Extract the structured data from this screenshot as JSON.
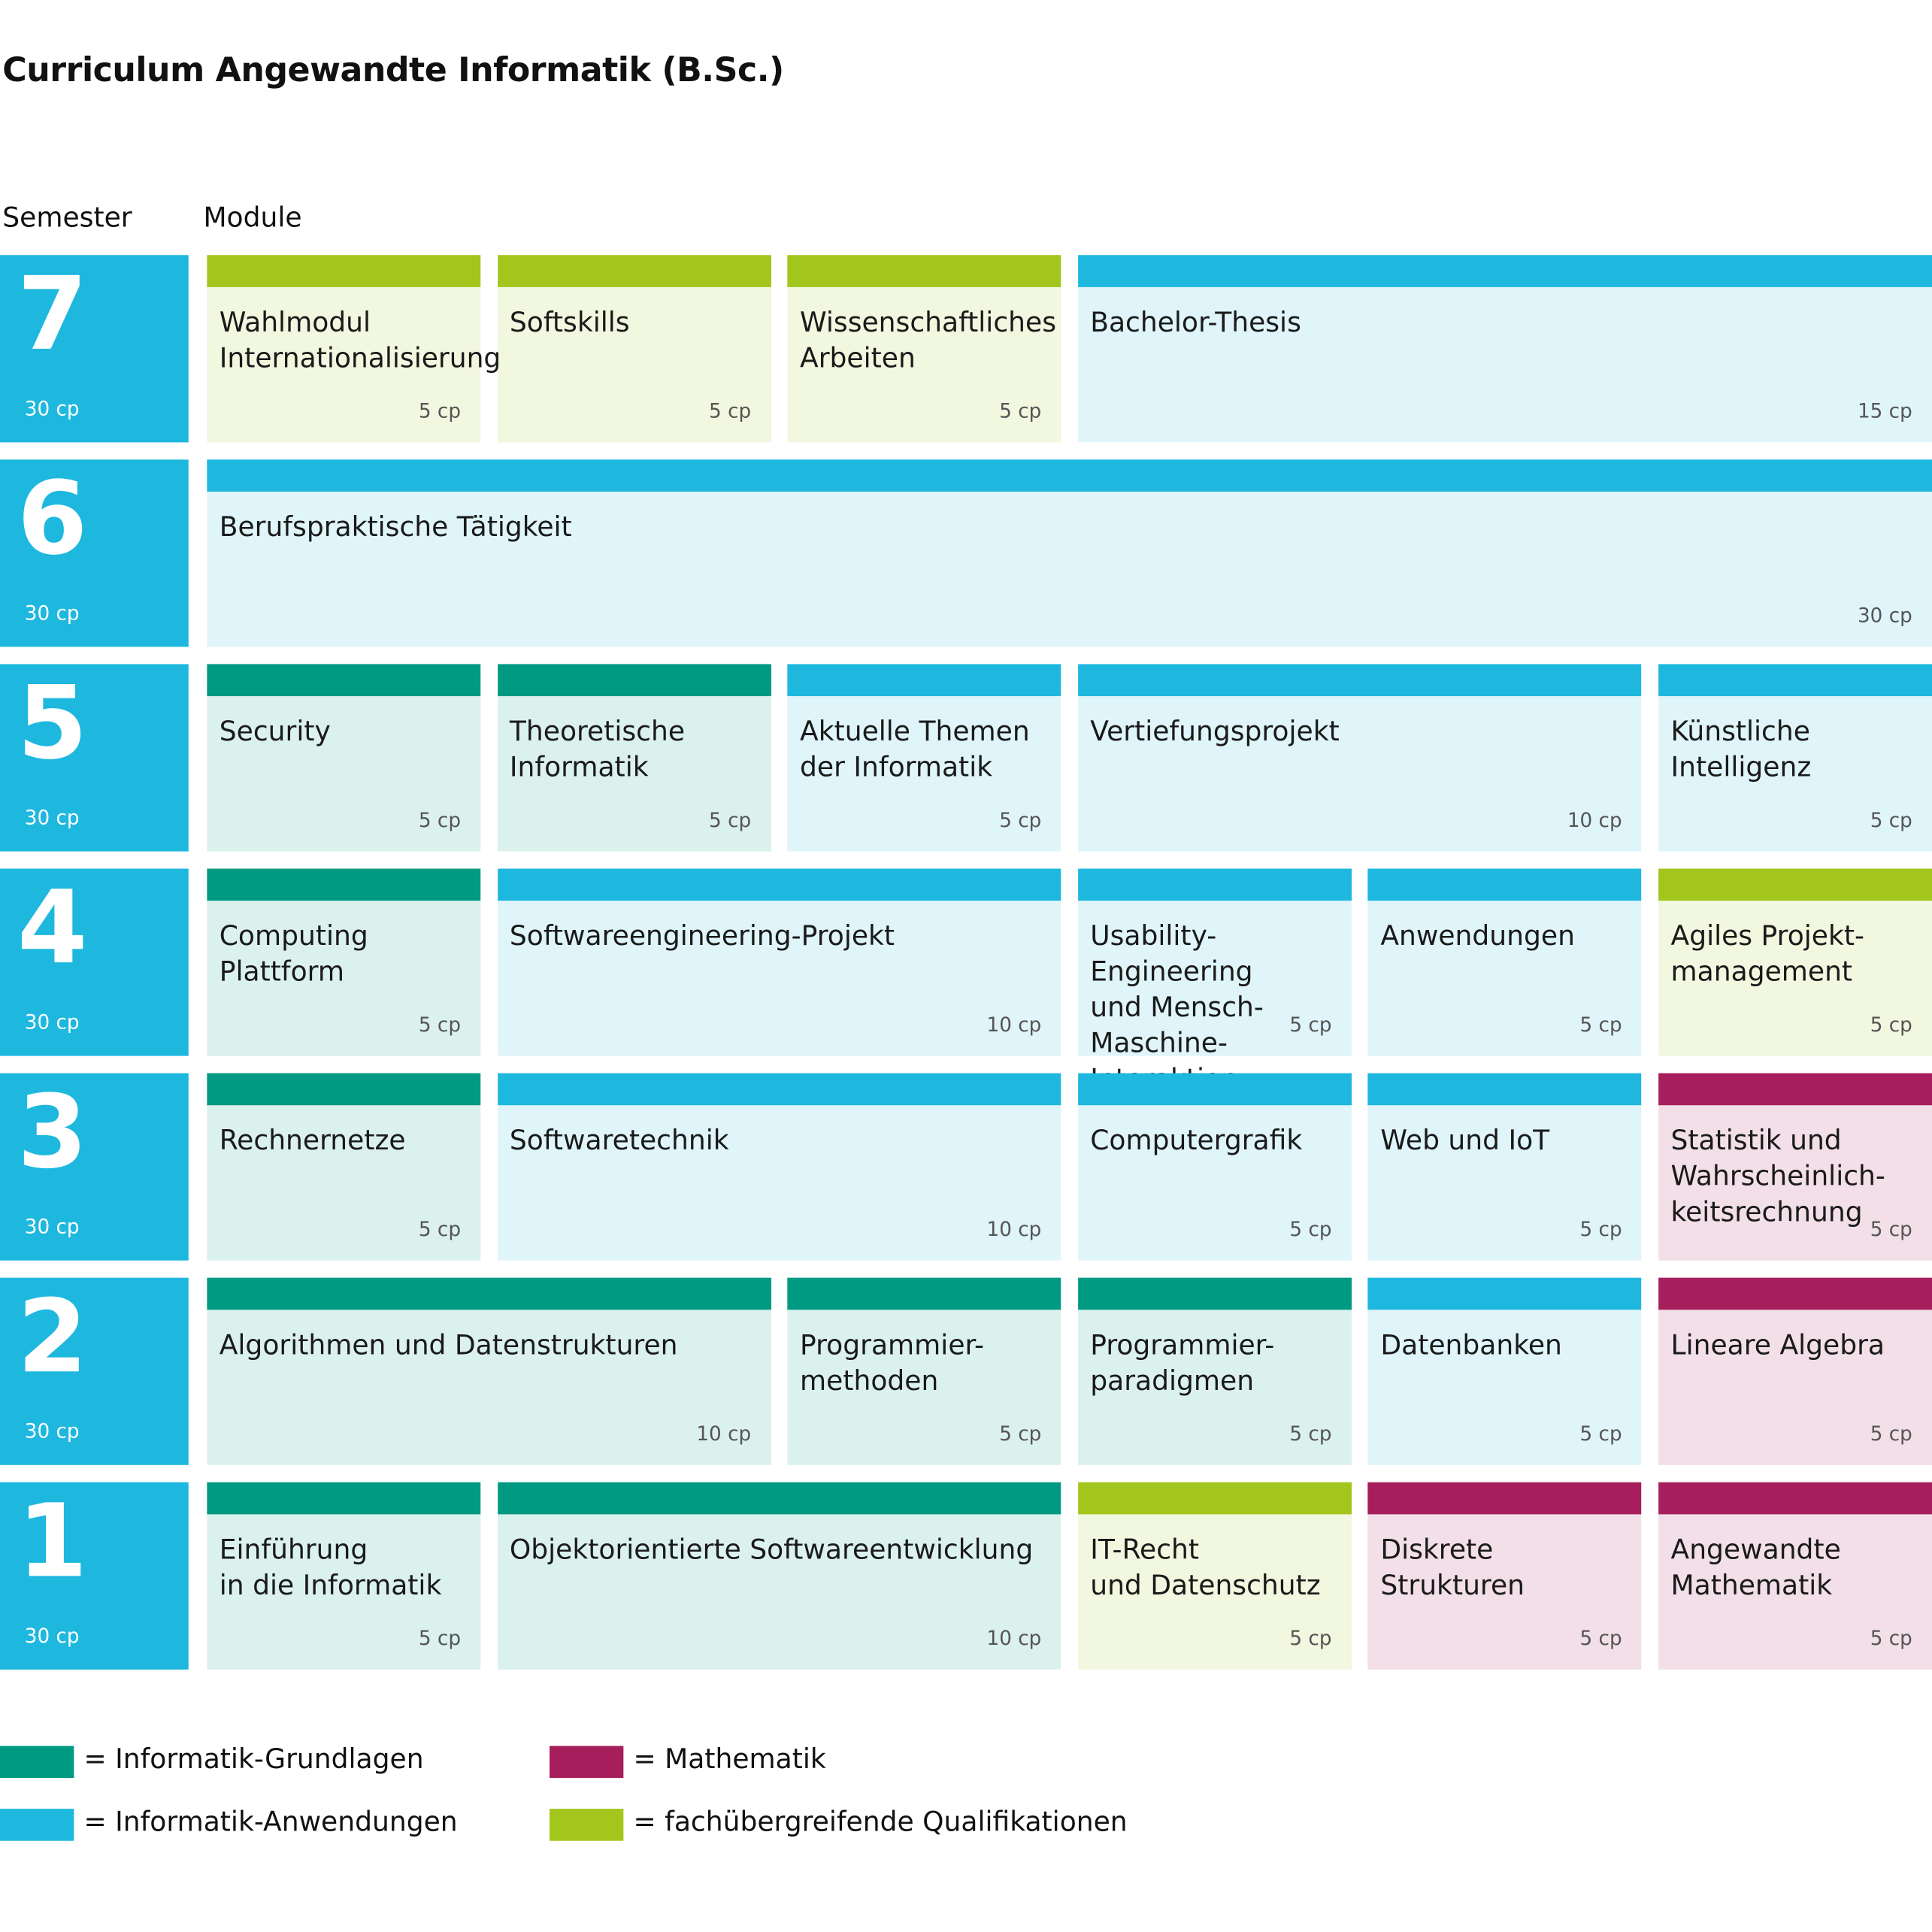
{
  "header": {
    "title": "Curriculum Angewandte Informatik (B.Sc.)",
    "semester_label": "Semester",
    "module_label": "Module"
  },
  "semesters": [
    {
      "number": 7,
      "cp": "30 cp",
      "modules": [
        {
          "name": "Wahlmodul\nInternationalisierung",
          "cp": "5 cp",
          "color": "#a2c61c"
        },
        {
          "name": "Softskills",
          "cp": "5 cp",
          "color": "#a2c61c"
        },
        {
          "name": "Wissenschaftliches\nArbeiten",
          "cp": "5 cp",
          "color": "#a2c61c"
        },
        {
          "name": "Bachelor-Thesis",
          "cp": "15 cp",
          "color": "#1eb8df"
        }
      ]
    },
    {
      "number": 6,
      "cp": "30 cp",
      "modules": [
        {
          "name": "Berufspraktische Tätigkeit",
          "cp": "30 cp",
          "color": "#1eb8df"
        }
      ]
    },
    {
      "number": 5,
      "cp": "30 cp",
      "modules": [
        {
          "name": "Security",
          "cp": "5 cp",
          "color": "#009982"
        },
        {
          "name": "Theoretische\nInformatik",
          "cp": "5 cp",
          "color": "#009982"
        },
        {
          "name": "Aktuelle Themen\nder Informatik",
          "cp": "5 cp",
          "color": "#1eb8df"
        },
        {
          "name": "Vertiefungsprojekt",
          "cp": "10 cp",
          "color": "#1eb8df"
        },
        {
          "name": "Künstliche\nIntelligenz",
          "cp": "5 cp",
          "color": "#1eb8df"
        }
      ]
    },
    {
      "number": 4,
      "cp": "30 cp",
      "modules": [
        {
          "name": "Computing\nPlattform",
          "cp": "5 cp",
          "color": "#009982"
        },
        {
          "name": "Softwareengineering-Projekt",
          "cp": "10 cp",
          "color": "#1eb8df"
        },
        {
          "name": "Usability-Engineering\nund Mensch-\nMaschine-Interaktion",
          "cp": "5 cp",
          "color": "#1eb8df"
        },
        {
          "name": "Anwendungen",
          "cp": "5 cp",
          "color": "#1eb8df"
        },
        {
          "name": "Agiles Projekt-\nmanagement",
          "cp": "5 cp",
          "color": "#a2c61c"
        }
      ]
    },
    {
      "number": 3,
      "cp": "30 cp",
      "modules": [
        {
          "name": "Rechnernetze",
          "cp": "5 cp",
          "color": "#009982"
        },
        {
          "name": "Softwaretechnik",
          "cp": "10 cp",
          "color": "#1eb8df"
        },
        {
          "name": "Computergrafik",
          "cp": "5 cp",
          "color": "#1eb8df"
        },
        {
          "name": "Web und IoT",
          "cp": "5 cp",
          "color": "#1eb8df"
        },
        {
          "name": "Statistik und\nWahrscheinlich-\nkeitsrechnung",
          "cp": "5 cp",
          "color": "#a61f5c"
        }
      ]
    },
    {
      "number": 2,
      "cp": "30 cp",
      "modules": [
        {
          "name": "Algorithmen und Datenstrukturen",
          "cp": "10 cp",
          "color": "#009982"
        },
        {
          "name": "Programmier-\nmethoden",
          "cp": "5 cp",
          "color": "#009982"
        },
        {
          "name": "Programmier-\nparadigmen",
          "cp": "5 cp",
          "color": "#009982"
        },
        {
          "name": "Datenbanken",
          "cp": "5 cp",
          "color": "#1eb8df"
        },
        {
          "name": "Lineare Algebra",
          "cp": "5 cp",
          "color": "#a61f5c"
        }
      ]
    },
    {
      "number": 1,
      "cp": "30 cp",
      "modules": [
        {
          "name": "Einführung\nin die Informatik",
          "cp": "5 cp",
          "color": "#009982"
        },
        {
          "name": "Objektorientierte Softwareentwicklung",
          "cp": "10 cp",
          "color": "#009982"
        },
        {
          "name": "IT-Recht\nund Datenschutz",
          "cp": "5 cp",
          "color": "#a2c61c"
        },
        {
          "name": "Diskrete\nStrukturen",
          "cp": "5 cp",
          "color": "#a61f5c"
        },
        {
          "name": "Angewandte\nMathematik",
          "cp": "5 cp",
          "color": "#a61f5c"
        }
      ]
    }
  ],
  "legend": [
    {
      "label": "= Informatik-Grundlagen",
      "color": "#009982"
    },
    {
      "label": "= Informatik-Anwendungen",
      "color": "#1eb8df"
    },
    {
      "label": "= Mathematik",
      "color": "#a61f5c"
    },
    {
      "label": "= fachübergreifende Qualifikationen",
      "color": "#a2c61c"
    }
  ]
}
